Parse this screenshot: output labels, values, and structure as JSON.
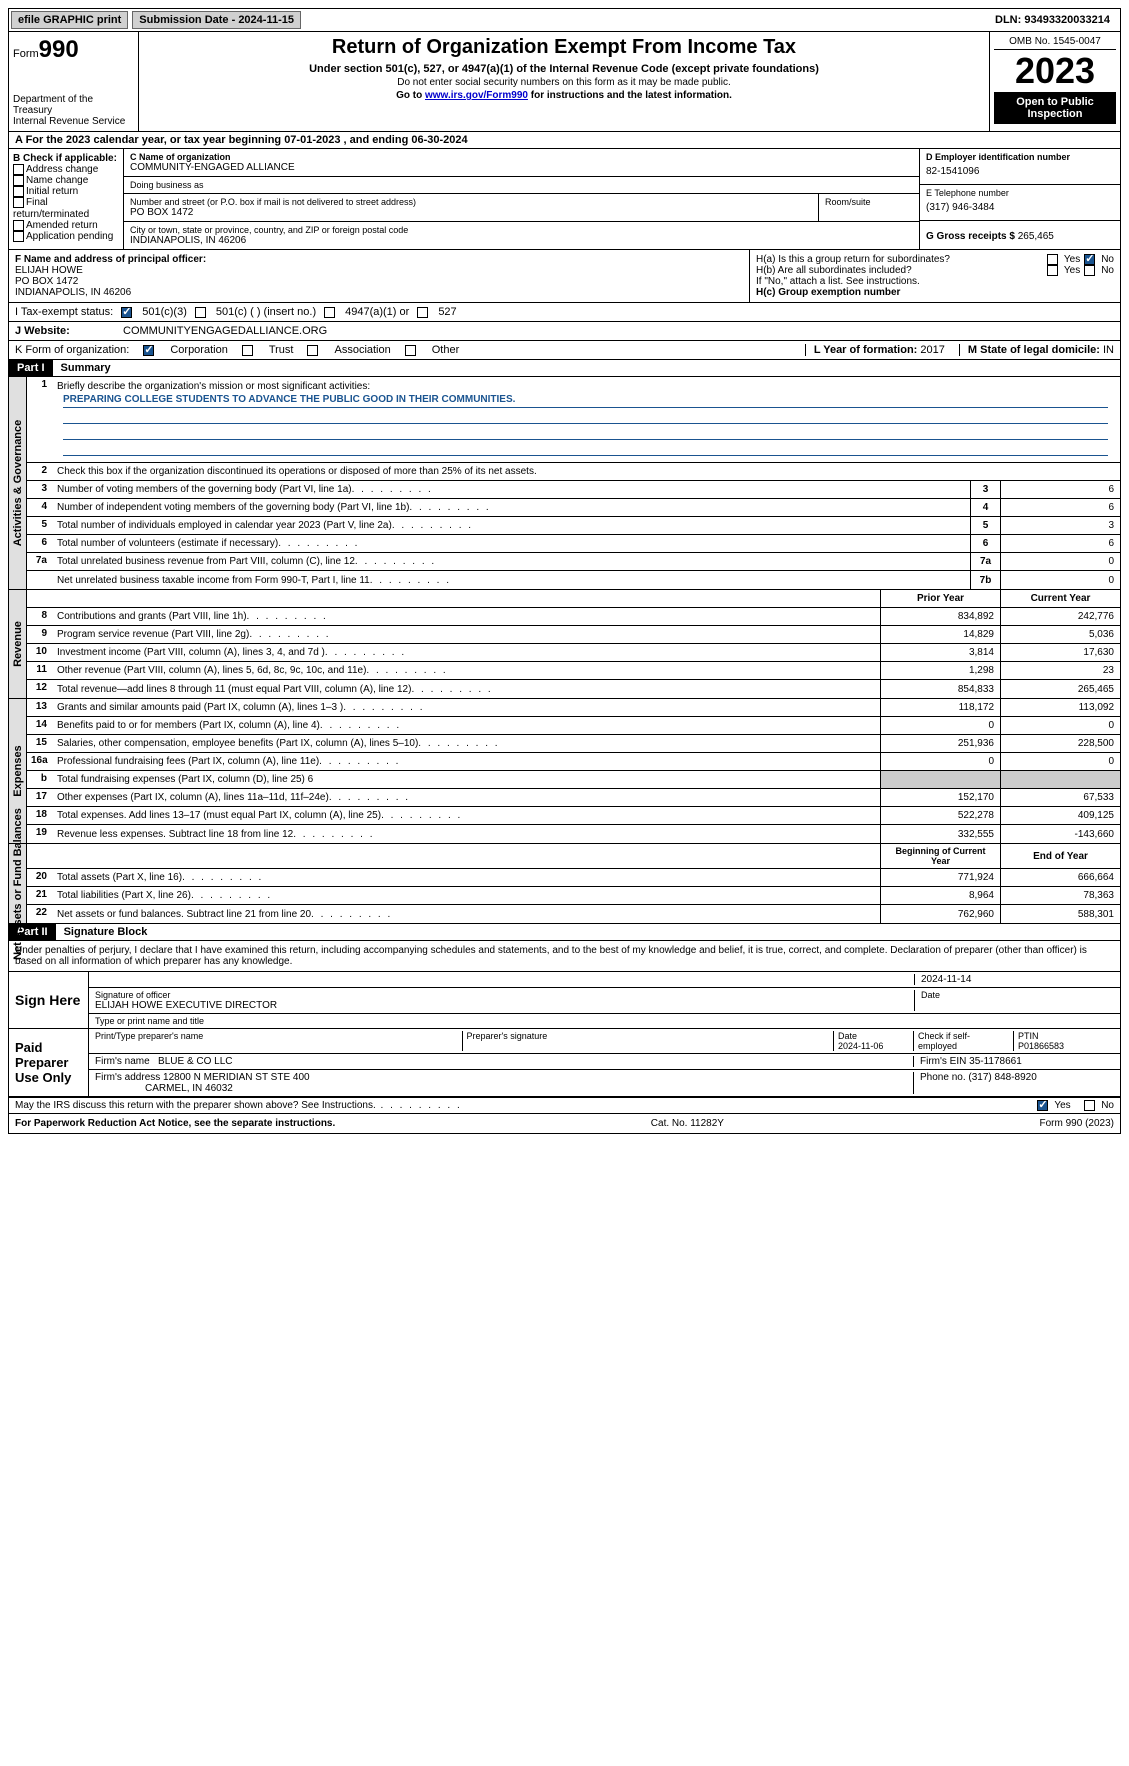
{
  "topbar": {
    "efile": "efile GRAPHIC print",
    "submission": "Submission Date - 2024-11-15",
    "dln": "DLN: 93493320033214"
  },
  "header": {
    "form_label": "Form",
    "form_num": "990",
    "dept": "Department of the Treasury",
    "irs": "Internal Revenue Service",
    "title": "Return of Organization Exempt From Income Tax",
    "sub1": "Under section 501(c), 527, or 4947(a)(1) of the Internal Revenue Code (except private foundations)",
    "sub2": "Do not enter social security numbers on this form as it may be made public.",
    "sub3_pre": "Go to ",
    "sub3_link": "www.irs.gov/Form990",
    "sub3_post": " for instructions and the latest information.",
    "omb": "OMB No. 1545-0047",
    "year": "2023",
    "open": "Open to Public Inspection"
  },
  "rowA": "A For the 2023 calendar year, or tax year beginning 07-01-2023    , and ending 06-30-2024",
  "B": {
    "hdr": "B Check if applicable:",
    "items": [
      "Address change",
      "Name change",
      "Initial return",
      "Final return/terminated",
      "Amended return",
      "Application pending"
    ]
  },
  "C": {
    "name_lbl": "C Name of organization",
    "name": "COMMUNITY-ENGAGED ALLIANCE",
    "dba_lbl": "Doing business as",
    "dba": "",
    "street_lbl": "Number and street (or P.O. box if mail is not delivered to street address)",
    "street": "PO BOX 1472",
    "room_lbl": "Room/suite",
    "city_lbl": "City or town, state or province, country, and ZIP or foreign postal code",
    "city": "INDIANAPOLIS, IN  46206"
  },
  "D": {
    "lbl": "D Employer identification number",
    "val": "82-1541096"
  },
  "E": {
    "lbl": "E Telephone number",
    "val": "(317) 946-3484"
  },
  "G": {
    "lbl": "G Gross receipts $",
    "val": "265,465"
  },
  "F": {
    "lbl": "F  Name and address of principal officer:",
    "l1": "ELIJAH HOWE",
    "l2": "PO BOX 1472",
    "l3": "INDIANAPOLIS, IN  46206"
  },
  "H": {
    "a_lbl": "H(a)  Is this a group return for subordinates?",
    "b_lbl": "H(b)  Are all subordinates included?",
    "b_note": "If \"No,\" attach a list. See instructions.",
    "c_lbl": "H(c)  Group exemption number",
    "yes": "Yes",
    "no": "No"
  },
  "I": {
    "lbl": "I    Tax-exempt status:",
    "o1": "501(c)(3)",
    "o2": "501(c) (  ) (insert no.)",
    "o3": "4947(a)(1) or",
    "o4": "527"
  },
  "J": {
    "lbl": "J    Website:",
    "val": "COMMUNITYENGAGEDALLIANCE.ORG"
  },
  "K": {
    "lbl": "K Form of organization:",
    "o1": "Corporation",
    "o2": "Trust",
    "o3": "Association",
    "o4": "Other"
  },
  "L": {
    "lbl": "L Year of formation:",
    "val": "2017"
  },
  "M": {
    "lbl": "M State of legal domicile:",
    "val": "IN"
  },
  "partI": {
    "hdr": "Part I",
    "title": "Summary"
  },
  "summary": {
    "q1": "Briefly describe the organization's mission or most significant activities:",
    "mission": "PREPARING COLLEGE STUDENTS TO ADVANCE THE PUBLIC GOOD IN THEIR COMMUNITIES.",
    "q2": "Check this box       if the organization discontinued its operations or disposed of more than 25% of its net assets.",
    "rows_ag": [
      {
        "n": "3",
        "d": "Number of voting members of the governing body (Part VI, line 1a)",
        "c": "3",
        "v": "6"
      },
      {
        "n": "4",
        "d": "Number of independent voting members of the governing body (Part VI, line 1b)",
        "c": "4",
        "v": "6"
      },
      {
        "n": "5",
        "d": "Total number of individuals employed in calendar year 2023 (Part V, line 2a)",
        "c": "5",
        "v": "3"
      },
      {
        "n": "6",
        "d": "Total number of volunteers (estimate if necessary)",
        "c": "6",
        "v": "6"
      },
      {
        "n": "7a",
        "d": "Total unrelated business revenue from Part VIII, column (C), line 12",
        "c": "7a",
        "v": "0"
      },
      {
        "n": "",
        "d": "Net unrelated business taxable income from Form 990-T, Part I, line 11",
        "c": "7b",
        "v": "0"
      }
    ],
    "col_prior": "Prior Year",
    "col_current": "Current Year",
    "revenue": [
      {
        "n": "8",
        "d": "Contributions and grants (Part VIII, line 1h)",
        "p": "834,892",
        "c": "242,776"
      },
      {
        "n": "9",
        "d": "Program service revenue (Part VIII, line 2g)",
        "p": "14,829",
        "c": "5,036"
      },
      {
        "n": "10",
        "d": "Investment income (Part VIII, column (A), lines 3, 4, and 7d )",
        "p": "3,814",
        "c": "17,630"
      },
      {
        "n": "11",
        "d": "Other revenue (Part VIII, column (A), lines 5, 6d, 8c, 9c, 10c, and 11e)",
        "p": "1,298",
        "c": "23"
      },
      {
        "n": "12",
        "d": "Total revenue—add lines 8 through 11 (must equal Part VIII, column (A), line 12)",
        "p": "854,833",
        "c": "265,465"
      }
    ],
    "expenses": [
      {
        "n": "13",
        "d": "Grants and similar amounts paid (Part IX, column (A), lines 1–3 )",
        "p": "118,172",
        "c": "113,092"
      },
      {
        "n": "14",
        "d": "Benefits paid to or for members (Part IX, column (A), line 4)",
        "p": "0",
        "c": "0"
      },
      {
        "n": "15",
        "d": "Salaries, other compensation, employee benefits (Part IX, column (A), lines 5–10)",
        "p": "251,936",
        "c": "228,500"
      },
      {
        "n": "16a",
        "d": "Professional fundraising fees (Part IX, column (A), line 11e)",
        "p": "0",
        "c": "0"
      },
      {
        "n": "b",
        "d": "Total fundraising expenses (Part IX, column (D), line 25) 6",
        "shaded": true
      },
      {
        "n": "17",
        "d": "Other expenses (Part IX, column (A), lines 11a–11d, 11f–24e)",
        "p": "152,170",
        "c": "67,533"
      },
      {
        "n": "18",
        "d": "Total expenses. Add lines 13–17 (must equal Part IX, column (A), line 25)",
        "p": "522,278",
        "c": "409,125"
      },
      {
        "n": "19",
        "d": "Revenue less expenses. Subtract line 18 from line 12",
        "p": "332,555",
        "c": "-143,660"
      }
    ],
    "col_begin": "Beginning of Current Year",
    "col_end": "End of Year",
    "netassets": [
      {
        "n": "20",
        "d": "Total assets (Part X, line 16)",
        "p": "771,924",
        "c": "666,664"
      },
      {
        "n": "21",
        "d": "Total liabilities (Part X, line 26)",
        "p": "8,964",
        "c": "78,363"
      },
      {
        "n": "22",
        "d": "Net assets or fund balances. Subtract line 21 from line 20",
        "p": "762,960",
        "c": "588,301"
      }
    ],
    "vert_ag": "Activities & Governance",
    "vert_rev": "Revenue",
    "vert_exp": "Expenses",
    "vert_na": "Net Assets or Fund Balances"
  },
  "partII": {
    "hdr": "Part II",
    "title": "Signature Block"
  },
  "sig": {
    "perjury": "Under penalties of perjury, I declare that I have examined this return, including accompanying schedules and statements, and to the best of my knowledge and belief, it is true, correct, and complete. Declaration of preparer (other than officer) is based on all information of which preparer has any knowledge.",
    "sign_here": "Sign Here",
    "sig_officer_lbl": "Signature of officer",
    "officer": "ELIJAH HOWE  EXECUTIVE DIRECTOR",
    "type_name_lbl": "Type or print name and title",
    "date_lbl": "Date",
    "date1": "2024-11-14",
    "paid": "Paid Preparer Use Only",
    "prep_name_lbl": "Print/Type preparer's name",
    "prep_sig_lbl": "Preparer's signature",
    "date2": "2024-11-06",
    "check_se": "Check         if self-employed",
    "ptin_lbl": "PTIN",
    "ptin": "P01866583",
    "firm_name_lbl": "Firm's name",
    "firm_name": "BLUE & CO LLC",
    "firm_ein_lbl": "Firm's EIN",
    "firm_ein": "35-1178661",
    "firm_addr_lbl": "Firm's address",
    "firm_addr1": "12800 N MERIDIAN ST STE 400",
    "firm_addr2": "CARMEL, IN  46032",
    "phone_lbl": "Phone no.",
    "phone": "(317) 848-8920",
    "may_irs": "May the IRS discuss this return with the preparer shown above? See Instructions.",
    "yes": "Yes",
    "no": "No"
  },
  "footer": {
    "l": "For Paperwork Reduction Act Notice, see the separate instructions.",
    "c": "Cat. No. 11282Y",
    "r": "Form 990 (2023)"
  }
}
